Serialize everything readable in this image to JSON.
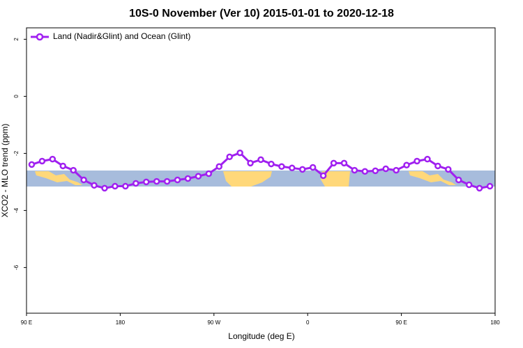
{
  "chart_data": {
    "type": "line",
    "title": "10S-0 November (Ver 10)   2015-01-01 to 2020-12-18",
    "x_label": "Longitude (deg E)",
    "y_label": "XCO2 - MLO trend (ppm)",
    "xlim": [
      90,
      540
    ],
    "xticks": [
      {
        "value": 90,
        "label": "90 E"
      },
      {
        "value": 180,
        "label": "180"
      },
      {
        "value": 270,
        "label": "90 W"
      },
      {
        "value": 360,
        "label": "0"
      },
      {
        "value": 450,
        "label": "90 E"
      },
      {
        "value": 540,
        "label": "180"
      }
    ],
    "ylim": [
      -7.6,
      2.4
    ],
    "yticks": [
      -6,
      -4,
      -2,
      0,
      2
    ],
    "x": [
      95,
      105,
      115,
      125,
      135,
      145,
      155,
      165,
      175,
      185,
      195,
      205,
      215,
      225,
      235,
      245,
      255,
      265,
      275,
      285,
      295,
      305,
      315,
      325,
      335,
      345,
      355,
      365,
      375,
      385,
      395,
      405,
      415,
      425,
      435,
      445,
      455,
      465,
      475,
      485,
      495,
      505,
      515,
      525,
      535
    ],
    "series": [
      {
        "name": "Land (Nadir&Glint) and Ocean (Glint)",
        "color": "#a020f0",
        "values": [
          -2.39,
          -2.27,
          -2.2,
          -2.44,
          -2.59,
          -2.93,
          -3.12,
          -3.22,
          -3.15,
          -3.15,
          -3.05,
          -3.0,
          -2.98,
          -2.98,
          -2.93,
          -2.88,
          -2.8,
          -2.71,
          -2.46,
          -2.12,
          -1.98,
          -2.34,
          -2.22,
          -2.37,
          -2.46,
          -2.51,
          -2.56,
          -2.49,
          -2.78,
          -2.34,
          -2.34,
          -2.59,
          -2.63,
          -2.61,
          -2.54,
          -2.59,
          -2.41,
          -2.27,
          -2.2,
          -2.44,
          -2.56,
          -2.93,
          -3.1,
          -3.22,
          -3.15
        ]
      }
    ]
  }
}
